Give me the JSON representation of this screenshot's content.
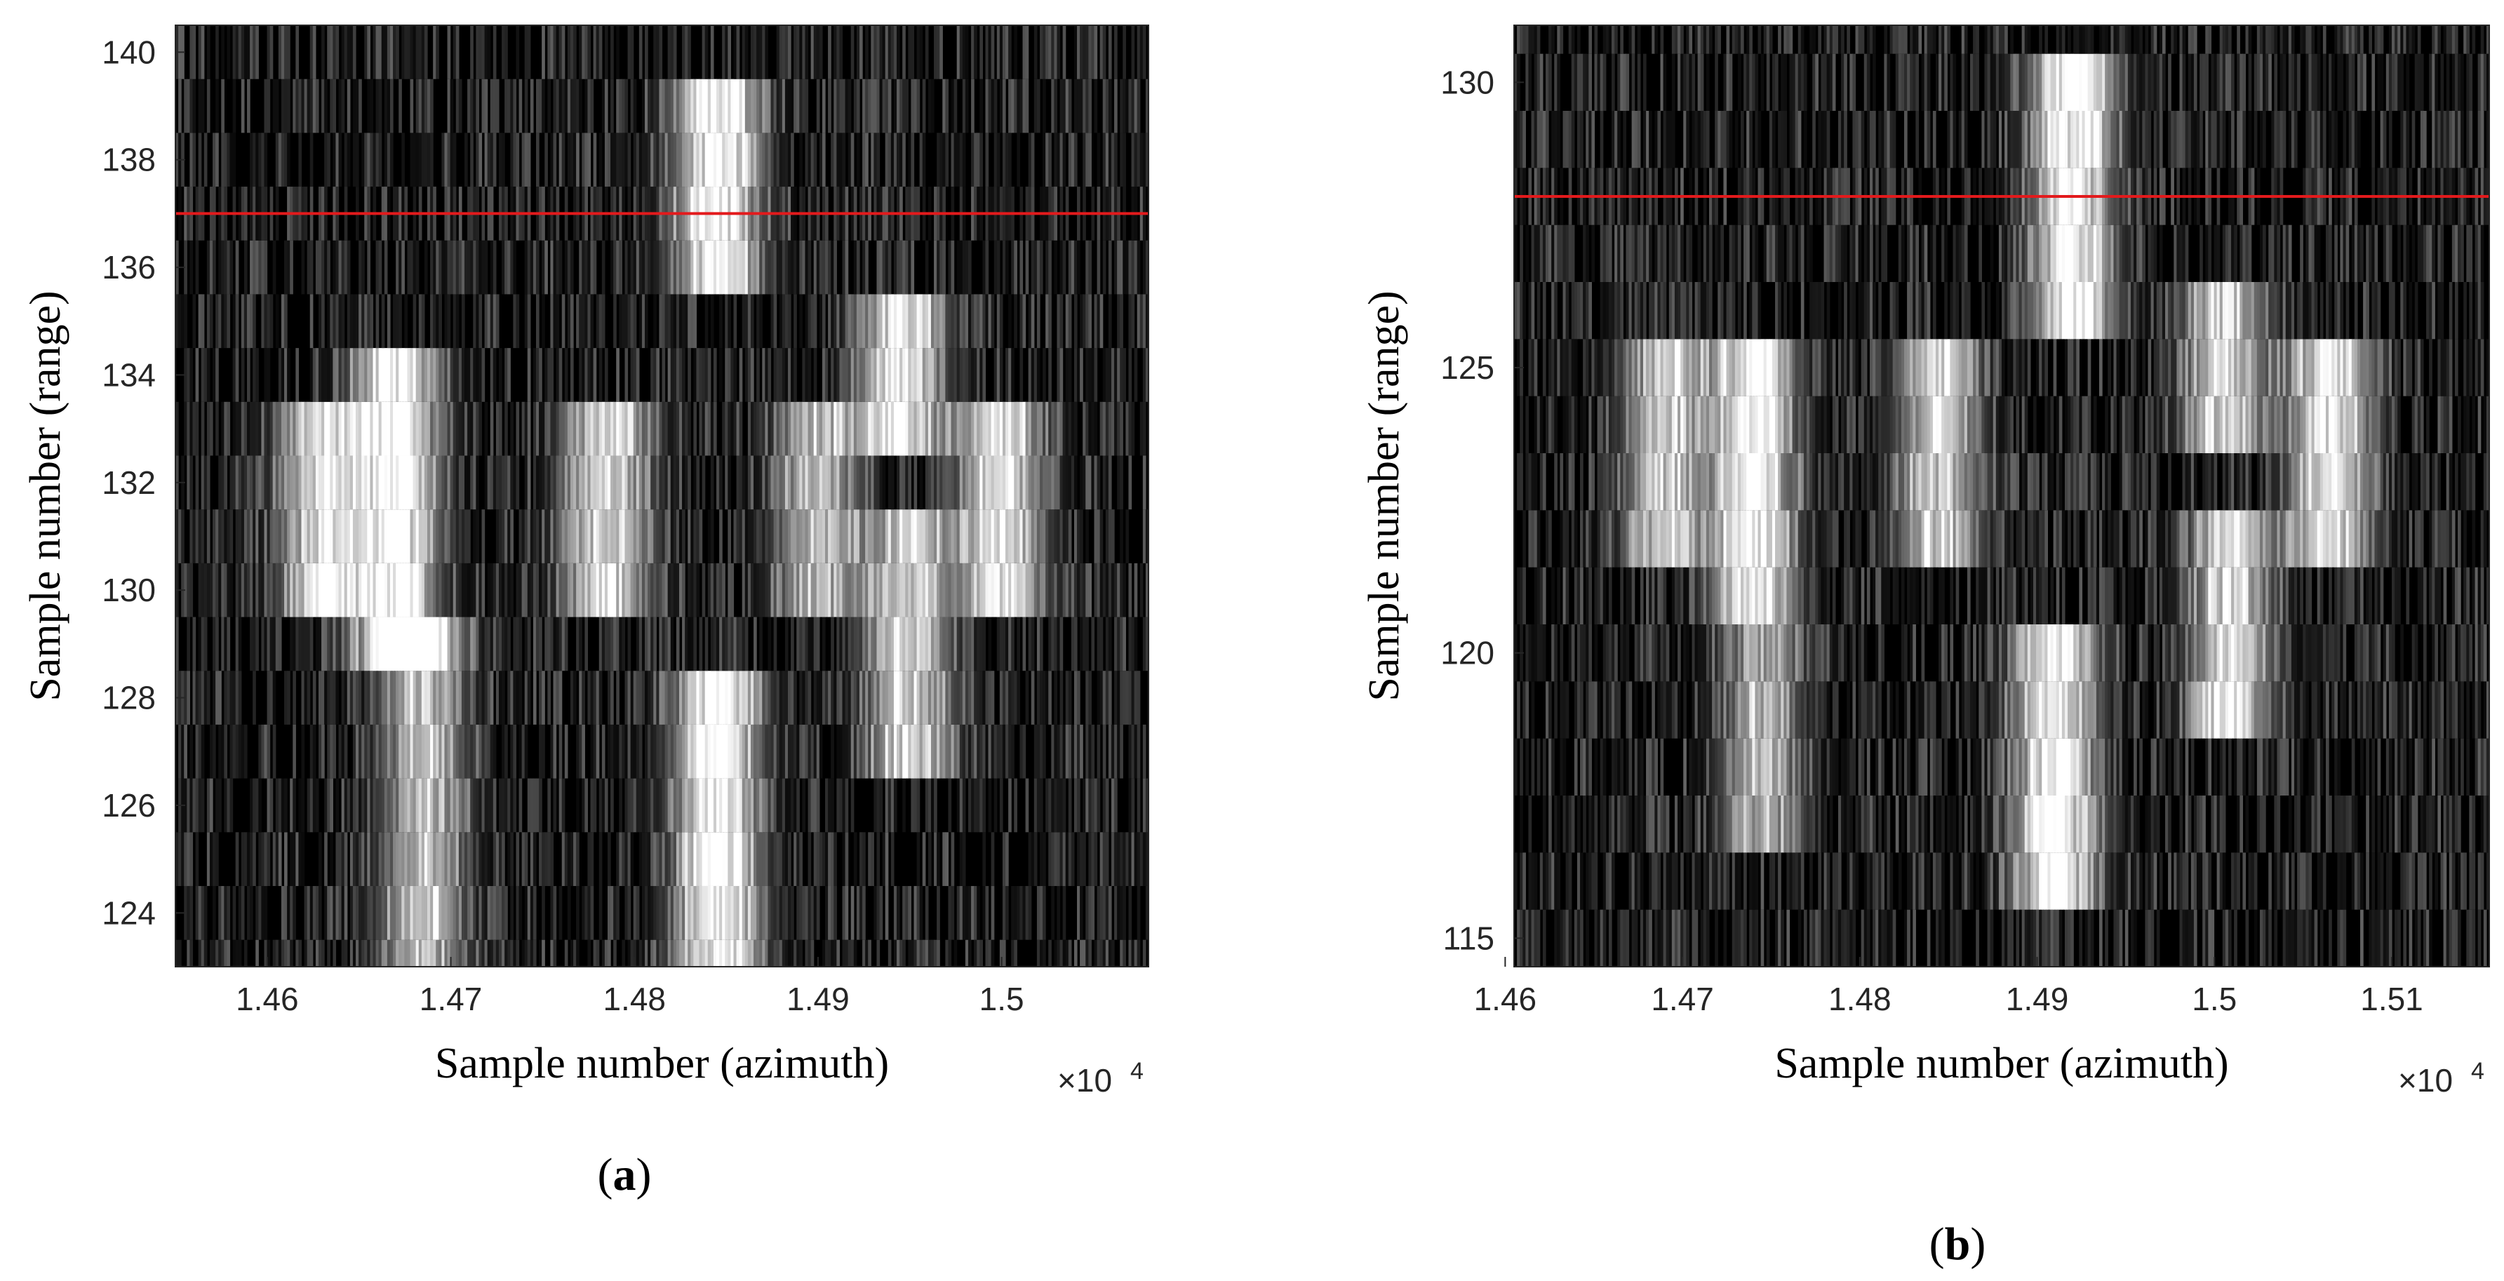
{
  "chart_data": [
    {
      "type": "heatmap",
      "panel_label": "(a)",
      "panel_letter": "a",
      "xlabel": "Sample number (azimuth)",
      "ylabel": "Sample number (range)",
      "x_exponent_label": "×10",
      "x_exponent_power": "4",
      "xlim": [
        1.455,
        1.508
      ],
      "ylim": [
        123,
        140.5
      ],
      "xticks": [
        1.46,
        1.47,
        1.48,
        1.49,
        1.5
      ],
      "xtick_labels": [
        "1.46",
        "1.47",
        "1.48",
        "1.49",
        "1.5"
      ],
      "yticks": [
        124,
        126,
        128,
        130,
        132,
        134,
        136,
        138,
        140
      ],
      "ytick_labels": [
        "124",
        "126",
        "128",
        "130",
        "132",
        "134",
        "136",
        "138",
        "140"
      ],
      "colormap": "gray",
      "reference_line": {
        "y": 137,
        "color": "#e31a1c"
      },
      "bright_spots": [
        {
          "x": 1.4845,
          "y_from": 135.5,
          "y_to": 139.5,
          "intensity": 1.0
        },
        {
          "x": 1.463,
          "y_from": 129.5,
          "y_to": 133.5,
          "intensity": 0.85
        },
        {
          "x": 1.467,
          "y_from": 129.0,
          "y_to": 134.5,
          "intensity": 1.0
        },
        {
          "x": 1.4685,
          "y_from": 123.0,
          "y_to": 129.0,
          "intensity": 0.7
        },
        {
          "x": 1.4785,
          "y_from": 129.5,
          "y_to": 133.5,
          "intensity": 0.85
        },
        {
          "x": 1.49,
          "y_from": 129.5,
          "y_to": 133.0,
          "intensity": 0.7
        },
        {
          "x": 1.4945,
          "y_from": 133.0,
          "y_to": 135.5,
          "intensity": 0.9
        },
        {
          "x": 1.495,
          "y_from": 127.0,
          "y_to": 131.5,
          "intensity": 0.8
        },
        {
          "x": 1.5,
          "y_from": 129.5,
          "y_to": 133.5,
          "intensity": 0.9
        },
        {
          "x": 1.4845,
          "y_from": 123.0,
          "y_to": 128.5,
          "intensity": 1.0
        }
      ]
    },
    {
      "type": "heatmap",
      "panel_label": "(b)",
      "panel_letter": "b",
      "xlabel": "Sample number (azimuth)",
      "ylabel": "Sample number (range)",
      "x_exponent_label": "×10",
      "x_exponent_power": "4",
      "xlim": [
        1.4605,
        1.5155
      ],
      "ylim": [
        114.5,
        131
      ],
      "xticks": [
        1.46,
        1.47,
        1.48,
        1.49,
        1.5,
        1.51
      ],
      "xtick_labels": [
        "1.46",
        "1.47",
        "1.48",
        "1.49",
        "1.5",
        "1.51"
      ],
      "yticks": [
        115,
        120,
        125,
        130
      ],
      "ytick_labels": [
        "115",
        "120",
        "125",
        "130"
      ],
      "colormap": "gray",
      "reference_line": {
        "y": 128,
        "color": "#e31a1c"
      },
      "bright_spots": [
        {
          "x": 1.492,
          "y_from": 126.0,
          "y_to": 130.5,
          "intensity": 1.0
        },
        {
          "x": 1.469,
          "y_from": 121.5,
          "y_to": 125.5,
          "intensity": 0.75
        },
        {
          "x": 1.474,
          "y_from": 120.5,
          "y_to": 125.5,
          "intensity": 1.0
        },
        {
          "x": 1.4745,
          "y_from": 117.0,
          "y_to": 120.5,
          "intensity": 0.6
        },
        {
          "x": 1.4845,
          "y_from": 121.5,
          "y_to": 125.5,
          "intensity": 0.8
        },
        {
          "x": 1.491,
          "y_from": 115.5,
          "y_to": 120.5,
          "intensity": 1.0
        },
        {
          "x": 1.5005,
          "y_from": 124.0,
          "y_to": 126.5,
          "intensity": 0.8
        },
        {
          "x": 1.501,
          "y_from": 119.0,
          "y_to": 122.5,
          "intensity": 0.85
        },
        {
          "x": 1.5065,
          "y_from": 121.5,
          "y_to": 125.5,
          "intensity": 0.9
        }
      ]
    }
  ]
}
